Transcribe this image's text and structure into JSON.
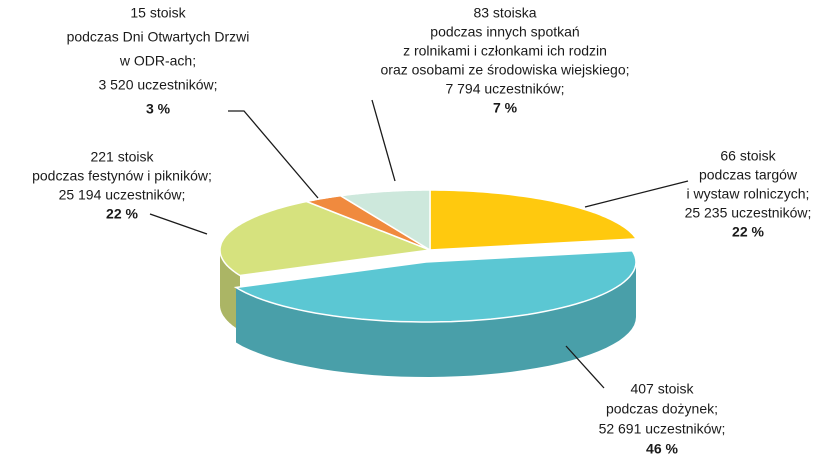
{
  "chart_data": {
    "type": "pie",
    "categories": [
      [
        "66 stoisk",
        "podczas targów",
        "i wystaw rolniczych;",
        "25 235 uczestników;"
      ],
      [
        "407 stoisk",
        "podczas dożynek;",
        "52 691 uczestników;"
      ],
      [
        "221 stoisk",
        "podczas festynów i pikników;",
        "25 194 uczestników;"
      ],
      [
        "15 stoisk",
        "podczas Dni Otwartych Drzwi",
        "w ODR-ach;",
        "3 520 uczestników;"
      ],
      [
        "83 stoiska",
        "podczas innych spotkań",
        "z rolnikami i członkami ich rodzin",
        "oraz osobami ze środowiska wiejskiego;",
        "7 794 uczestników;"
      ]
    ],
    "values": [
      22,
      46,
      22,
      3,
      7
    ],
    "value_labels": [
      "22 %",
      "46 %",
      "22 %",
      "3 %",
      "7 %"
    ],
    "colors": [
      "#FFC90E",
      "#5BC7D3",
      "#D6E27E",
      "#F08A3E",
      "#CDE8DC"
    ],
    "exploded": 1
  }
}
